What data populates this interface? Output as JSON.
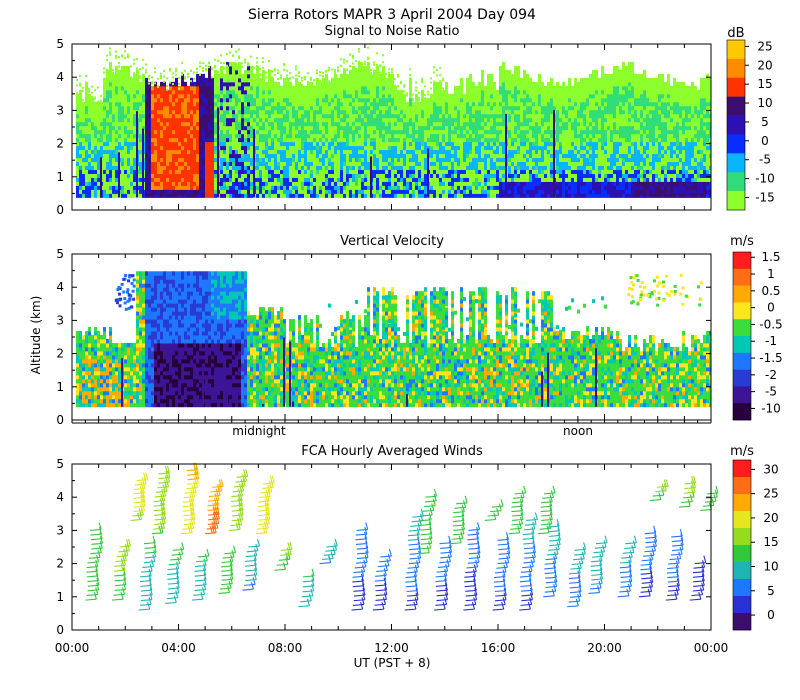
{
  "figure": {
    "title": "Sierra Rotors  MAPR   3 April 2004 Day 094",
    "xlabel": "UT  (PST + 8)",
    "ylabel": "Altitude (km)",
    "midnight_label": "midnight",
    "noon_label": "noon"
  },
  "chart_data": [
    {
      "type": "heatmap",
      "title": "Signal to Noise Ratio",
      "unit": "dB",
      "xlim": [
        0,
        24
      ],
      "ylim": [
        0,
        5
      ],
      "yticks": [
        "0",
        "1",
        "2",
        "3",
        "4",
        "5"
      ],
      "colorbar_ticks": [
        "25",
        "20",
        "15",
        "10",
        "5",
        "0",
        "-5",
        "-10",
        "-15"
      ],
      "colorbar_colors": [
        "#ffc800",
        "#ff8c00",
        "#ff3200",
        "#3c0f6e",
        "#2d10b4",
        "#0a2dff",
        "#0ab4ff",
        "#32dc78",
        "#8cff2d"
      ],
      "features": [
        {
          "desc": "strong echo",
          "x_start": 2.7,
          "x_end": 5.3,
          "y_top": 4.5
        },
        {
          "desc": "weak echo floor",
          "x_start": 16,
          "x_end": 23.8,
          "y_top": 0.8
        }
      ]
    },
    {
      "type": "heatmap",
      "title": "Vertical Velocity",
      "unit": "m/s",
      "xlim": [
        0,
        24
      ],
      "ylim": [
        0,
        5
      ],
      "yticks": [
        "0",
        "1",
        "2",
        "3",
        "4",
        "5"
      ],
      "colorbar_ticks": [
        "1.5",
        "1",
        "0.5",
        "0",
        "-0.5",
        "-1",
        "-1.5",
        "-2",
        "-5",
        "-10"
      ],
      "colorbar_colors": [
        "#ff1e1e",
        "#ff6e14",
        "#ffaa00",
        "#ffe61e",
        "#3cdc3c",
        "#00c8b4",
        "#1e78ff",
        "#283cd2",
        "#3c1496",
        "#28003c"
      ],
      "features": [
        {
          "desc": "strong downdraft",
          "x_start": 2.7,
          "x_end": 6.5,
          "y_top": 4.5
        }
      ]
    },
    {
      "type": "wind_barbs",
      "title": "FCA Hourly Averaged Winds",
      "unit": "m/s",
      "xlim": [
        0,
        24
      ],
      "ylim": [
        0,
        5
      ],
      "yticks": [
        "0",
        "1",
        "2",
        "3",
        "4",
        "5"
      ],
      "xticks": [
        "00:00",
        "04:00",
        "08:00",
        "12:00",
        "16:00",
        "20:00",
        "00:00"
      ],
      "colorbar_ticks": [
        "30",
        "25",
        "20",
        "15",
        "10",
        "5",
        "0"
      ],
      "colorbar_colors": [
        "#ff1e1e",
        "#ff6e14",
        "#ffaa00",
        "#e6e61e",
        "#96dc1e",
        "#32c83c",
        "#1eb4b4",
        "#1e78ff",
        "#2832d2",
        "#3c0f6e"
      ],
      "profiles": [
        {
          "hour": 0.5,
          "bottom": 0.9,
          "top": 3.0,
          "speed_low": 14,
          "speed_high": 14
        },
        {
          "hour": 1.5,
          "bottom": 0.9,
          "top": 2.5,
          "speed_low": 14,
          "speed_high": 16
        },
        {
          "hour": 2.2,
          "bottom": 3.3,
          "top": 4.5,
          "speed_low": 18,
          "speed_high": 20
        },
        {
          "hour": 2.5,
          "bottom": 0.6,
          "top": 2.6,
          "speed_low": 10,
          "speed_high": 12
        },
        {
          "hour": 3.0,
          "bottom": 2.9,
          "top": 4.7,
          "speed_low": 15,
          "speed_high": 16
        },
        {
          "hour": 3.5,
          "bottom": 0.8,
          "top": 2.4,
          "speed_low": 11,
          "speed_high": 12
        },
        {
          "hour": 4.1,
          "bottom": 2.9,
          "top": 4.8,
          "speed_low": 20,
          "speed_high": 22
        },
        {
          "hour": 4.5,
          "bottom": 0.9,
          "top": 2.2,
          "speed_low": 10,
          "speed_high": 12
        },
        {
          "hour": 5.0,
          "bottom": 2.9,
          "top": 4.3,
          "speed_low": 26,
          "speed_high": 24
        },
        {
          "hour": 5.5,
          "bottom": 1.1,
          "top": 2.3,
          "speed_low": 12,
          "speed_high": 14
        },
        {
          "hour": 5.9,
          "bottom": 3.0,
          "top": 4.6,
          "speed_low": 18,
          "speed_high": 16
        },
        {
          "hour": 6.4,
          "bottom": 1.2,
          "top": 2.5,
          "speed_low": 8,
          "speed_high": 10
        },
        {
          "hour": 6.9,
          "bottom": 2.9,
          "top": 4.4,
          "speed_low": 20,
          "speed_high": 20
        },
        {
          "hour": 7.6,
          "bottom": 1.8,
          "top": 2.4,
          "speed_low": 14,
          "speed_high": 16
        },
        {
          "hour": 8.5,
          "bottom": 0.7,
          "top": 1.6,
          "speed_low": 10,
          "speed_high": 12
        },
        {
          "hour": 9.3,
          "bottom": 2.0,
          "top": 2.5,
          "speed_low": 8,
          "speed_high": 10
        },
        {
          "hour": 10.5,
          "bottom": 0.6,
          "top": 3.0,
          "speed_low": 3,
          "speed_high": 8
        },
        {
          "hour": 11.3,
          "bottom": 0.6,
          "top": 2.2,
          "speed_low": 2,
          "speed_high": 8
        },
        {
          "hour": 12.5,
          "bottom": 0.6,
          "top": 3.4,
          "speed_low": 4,
          "speed_high": 10
        },
        {
          "hour": 13.0,
          "bottom": 2.3,
          "top": 4.0,
          "speed_low": 12,
          "speed_high": 14
        },
        {
          "hour": 13.6,
          "bottom": 0.6,
          "top": 2.6,
          "speed_low": 3,
          "speed_high": 8
        },
        {
          "hour": 14.2,
          "bottom": 2.6,
          "top": 3.8,
          "speed_low": 12,
          "speed_high": 14
        },
        {
          "hour": 14.7,
          "bottom": 0.6,
          "top": 3.0,
          "speed_low": 2,
          "speed_high": 8
        },
        {
          "hour": 15.5,
          "bottom": 3.3,
          "top": 3.7,
          "speed_low": 12,
          "speed_high": 14
        },
        {
          "hour": 15.8,
          "bottom": 0.6,
          "top": 2.7,
          "speed_low": 4,
          "speed_high": 8
        },
        {
          "hour": 16.4,
          "bottom": 2.9,
          "top": 4.1,
          "speed_low": 12,
          "speed_high": 14
        },
        {
          "hour": 16.8,
          "bottom": 0.6,
          "top": 3.3,
          "speed_low": 4,
          "speed_high": 10
        },
        {
          "hour": 17.5,
          "bottom": 2.9,
          "top": 4.1,
          "speed_low": 12,
          "speed_high": 14
        },
        {
          "hour": 17.7,
          "bottom": 1.0,
          "top": 3.1,
          "speed_low": 6,
          "speed_high": 10
        },
        {
          "hour": 18.6,
          "bottom": 0.7,
          "top": 2.4,
          "speed_low": 6,
          "speed_high": 10
        },
        {
          "hour": 19.4,
          "bottom": 1.1,
          "top": 2.6,
          "speed_low": 8,
          "speed_high": 10
        },
        {
          "hour": 20.5,
          "bottom": 1.0,
          "top": 2.6,
          "speed_low": 6,
          "speed_high": 10
        },
        {
          "hour": 21.3,
          "bottom": 1.0,
          "top": 2.9,
          "speed_low": 3,
          "speed_high": 8
        },
        {
          "hour": 21.7,
          "bottom": 3.9,
          "top": 4.3,
          "speed_low": 14,
          "speed_high": 16
        },
        {
          "hour": 22.3,
          "bottom": 0.9,
          "top": 2.8,
          "speed_low": 4,
          "speed_high": 8
        },
        {
          "hour": 22.8,
          "bottom": 3.7,
          "top": 4.4,
          "speed_low": 14,
          "speed_high": 16
        },
        {
          "hour": 23.2,
          "bottom": 0.9,
          "top": 2.0,
          "speed_low": 2,
          "speed_high": 5
        },
        {
          "hour": 23.6,
          "bottom": 3.6,
          "top": 4.1,
          "speed_low": 12,
          "speed_high": 14
        }
      ]
    }
  ]
}
